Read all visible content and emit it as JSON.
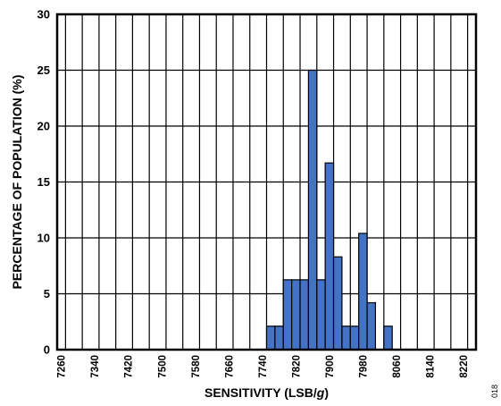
{
  "chart_data": {
    "type": "bar",
    "xlabel_main": "SENSITIVITY (LSB/",
    "xlabel_unit": "g",
    "xlabel_end": ")",
    "ylabel": "PERCENTAGE OF POPULATION (%)",
    "ylim": [
      0,
      30
    ],
    "yticks": [
      0,
      5,
      10,
      15,
      20,
      25,
      30
    ],
    "bin_start": 7260,
    "bin_width": 20,
    "categories": [
      7260,
      7280,
      7300,
      7320,
      7340,
      7360,
      7380,
      7400,
      7420,
      7440,
      7460,
      7480,
      7500,
      7520,
      7540,
      7560,
      7580,
      7600,
      7620,
      7640,
      7660,
      7680,
      7700,
      7720,
      7740,
      7760,
      7780,
      7800,
      7820,
      7840,
      7860,
      7880,
      7900,
      7920,
      7940,
      7960,
      7980,
      8000,
      8020,
      8040,
      8060,
      8080,
      8100,
      8120,
      8140,
      8160,
      8180,
      8200,
      8220,
      8240
    ],
    "xticks": [
      7260,
      7340,
      7420,
      7500,
      7580,
      7660,
      7740,
      7820,
      7900,
      7980,
      8060,
      8140,
      8220
    ],
    "values": [
      0,
      0,
      0,
      0,
      0,
      0,
      0,
      0,
      0,
      0,
      0,
      0,
      0,
      0,
      0,
      0,
      0,
      0,
      0,
      0,
      0,
      0,
      0,
      0,
      0,
      2.1,
      2.1,
      6.25,
      6.25,
      6.25,
      25,
      6.25,
      16.7,
      8.3,
      2.1,
      2.1,
      10.4,
      4.2,
      0,
      2.1,
      0,
      0,
      0,
      0,
      0,
      0,
      0,
      0,
      0,
      0
    ],
    "grid": true,
    "bar_color": "#4472c4",
    "figure_id": "018"
  }
}
